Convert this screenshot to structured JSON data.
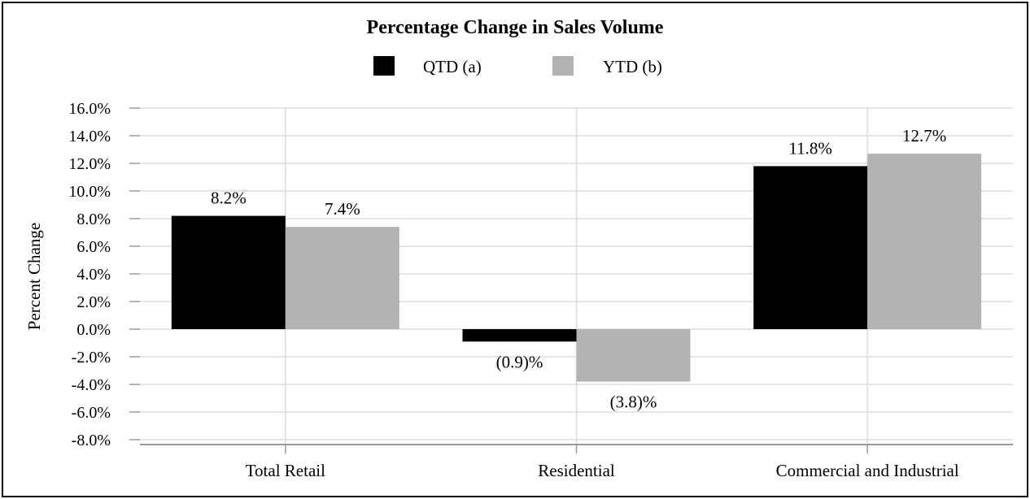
{
  "chart_data": {
    "type": "bar",
    "title": "Percentage Change in Sales Volume",
    "ylabel": "Percent Change",
    "xlabel": "",
    "categories": [
      "Total Retail",
      "Residential",
      "Commercial and Industrial"
    ],
    "series": [
      {
        "name": "QTD (a)",
        "color": "#000000",
        "values": [
          8.2,
          -0.9,
          11.8
        ],
        "labels": [
          "8.2%",
          "(0.9)%",
          "11.8%"
        ]
      },
      {
        "name": "YTD (b)",
        "color": "#b3b3b3",
        "values": [
          7.4,
          -3.8,
          12.7
        ],
        "labels": [
          "7.4%",
          "(3.8)%",
          "12.7%"
        ]
      }
    ],
    "ylim": [
      -8,
      16
    ],
    "yticks": [
      "16.0%",
      "14.0%",
      "12.0%",
      "10.0%",
      "8.0%",
      "6.0%",
      "4.0%",
      "2.0%",
      "0.0%",
      "-2.0%",
      "-4.0%",
      "-6.0%",
      "-8.0%"
    ],
    "grid": true,
    "legend_position": "top-center"
  }
}
